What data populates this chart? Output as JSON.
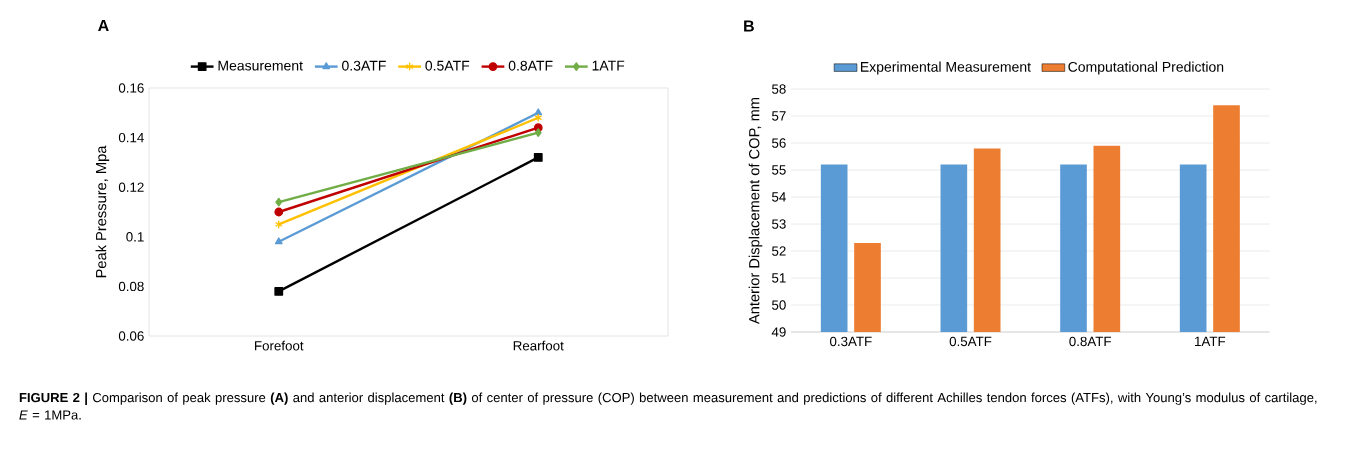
{
  "chart_data": [
    {
      "type": "line",
      "title": "A",
      "ylabel": "Peak Pressure, Mpa",
      "categories": [
        "Forefoot",
        "Rearfoot"
      ],
      "series": [
        {
          "name": "Measurement",
          "color": "#000000",
          "marker": "square",
          "values": [
            0.078,
            0.132
          ]
        },
        {
          "name": "0.3ATF",
          "color": "#5b9bd5",
          "marker": "triangle",
          "values": [
            0.098,
            0.15
          ]
        },
        {
          "name": "0.5ATF",
          "color": "#ffc000",
          "marker": "cross",
          "values": [
            0.105,
            0.148
          ]
        },
        {
          "name": "0.8ATF",
          "color": "#c00000",
          "marker": "circle",
          "values": [
            0.11,
            0.144
          ]
        },
        {
          "name": "1ATF",
          "color": "#70ad47",
          "marker": "diamond",
          "values": [
            0.114,
            0.142
          ]
        }
      ],
      "ylim": [
        0.06,
        0.16
      ],
      "yticks": [
        0.06,
        0.08,
        0.1,
        0.12,
        0.14,
        0.16
      ],
      "legend": "top",
      "line_style": "solid",
      "annotations": [
        "**FIGURE 2 |** Comparison of peak pressure **(A)** and anterior displacement **(B)** of center of pressure (COP) between measurement and predictions of different Achilles tendon forces (ATFs), with Young’s modulus of cartilage, *E* = 1MPa."
      ]
    },
    {
      "type": "bar",
      "title": "B",
      "ylabel": "Anterior Displacement of COP, mm",
      "categories": [
        "0.3ATF",
        "0.5ATF",
        "0.8ATF",
        "1ATF"
      ],
      "series": [
        {
          "name": "Experimental Measurement",
          "color": "#5b9bd5",
          "values": [
            55.2,
            55.2,
            55.2,
            55.2
          ]
        },
        {
          "name": "Computational Prediction",
          "color": "#ed7d31",
          "values": [
            52.3,
            55.8,
            55.9,
            57.4
          ]
        }
      ],
      "ylim": [
        49,
        58
      ],
      "yticks": [
        49,
        50,
        51,
        52,
        53,
        54,
        55,
        56,
        57,
        58
      ],
      "grid": "y",
      "legend": "top"
    }
  ]
}
